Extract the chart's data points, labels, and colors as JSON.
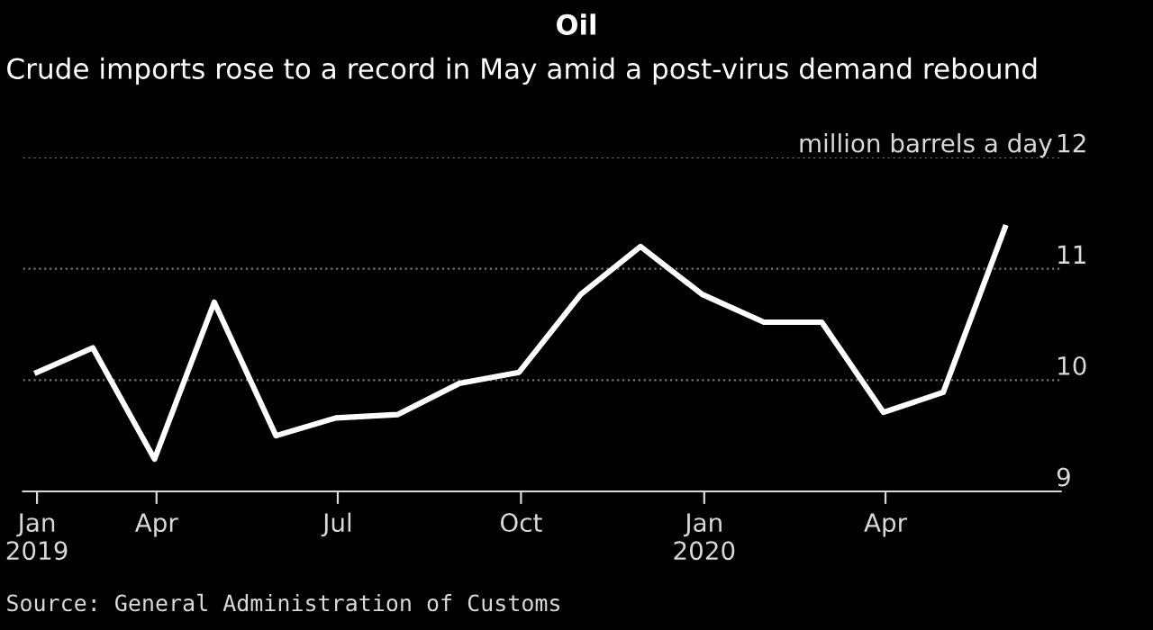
{
  "chart_data": {
    "type": "line",
    "title": "Oil",
    "subtitle": "Crude imports rose to a record in May amid a post-virus demand rebound",
    "x": [
      "2019-01-31",
      "2019-02-28",
      "2019-03-31",
      "2019-04-30",
      "2019-05-31",
      "2019-06-30",
      "2019-07-31",
      "2019-08-31",
      "2019-09-30",
      "2019-10-31",
      "2019-11-30",
      "2019-12-31",
      "2020-01-31",
      "2020-02-29",
      "2020-03-31",
      "2020-04-30",
      "2020-05-31"
    ],
    "series": [
      {
        "color": "#ffffff",
        "values": [
          10.07,
          10.29,
          9.29,
          10.7,
          9.5,
          9.66,
          9.69,
          9.97,
          10.07,
          10.77,
          11.2,
          10.77,
          10.52,
          10.52,
          9.71,
          9.89,
          11.37
        ]
      }
    ],
    "xlim": [
      "2019-01-24",
      "2020-06-28"
    ],
    "xticks": [
      {
        "value": "2019-01-31",
        "label": "Jan\n2019"
      },
      {
        "value": "2019-04-01",
        "label": "Apr"
      },
      {
        "value": "2019-07-01",
        "label": "Jul"
      },
      {
        "value": "2019-10-01",
        "label": "Oct"
      },
      {
        "value": "2020-01-01",
        "label": "Jan\n2020"
      },
      {
        "value": "2020-04-01",
        "label": "Apr"
      }
    ],
    "ylim": [
      9,
      12
    ],
    "yticks": [
      9,
      10,
      11,
      12
    ],
    "ylabel": "million barrels a day",
    "grid": "y",
    "legend": false,
    "marker": "none",
    "line_style": "solid",
    "annotations": [
      "Source: General Administration of Customs"
    ]
  }
}
